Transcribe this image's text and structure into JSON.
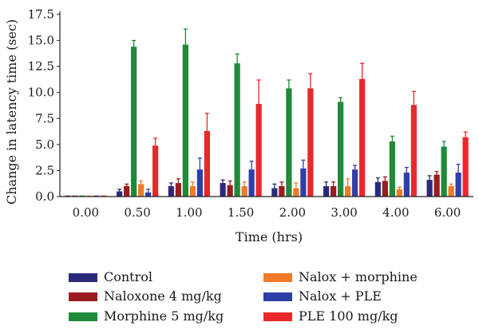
{
  "chart_data": {
    "type": "bar",
    "title": "",
    "xlabel": "Time (hrs)",
    "ylabel": "Change in latency time (sec)",
    "ylim": [
      0,
      17.5
    ],
    "yticks": [
      "0.0",
      "2.5",
      "5.0",
      "7.5",
      "10.0",
      "12.5",
      "15.0",
      "17.5"
    ],
    "categories": [
      "0.00",
      "0.50",
      "1.00",
      "1.50",
      "2.00",
      "3.00",
      "4.00",
      "6.00"
    ],
    "error_bars": true,
    "grid": false,
    "legend_position": "bottom",
    "series": [
      {
        "name": "Control",
        "color": "#2b2a7a",
        "values": [
          0.1,
          0.5,
          1.0,
          1.3,
          0.8,
          1.0,
          1.4,
          1.6
        ],
        "errors": [
          0.05,
          0.2,
          0.3,
          0.3,
          0.4,
          0.4,
          0.4,
          0.4
        ]
      },
      {
        "name": "Naloxone 4 mg/kg",
        "color": "#9a1c1f",
        "values": [
          0.1,
          1.0,
          1.3,
          1.1,
          1.0,
          1.0,
          1.5,
          2.1
        ],
        "errors": [
          0.05,
          0.2,
          0.4,
          0.4,
          0.4,
          0.4,
          0.4,
          0.3
        ]
      },
      {
        "name": "Morphine 5 mg/kg",
        "color": "#1f8a3a",
        "values": [
          0.1,
          14.4,
          14.6,
          12.8,
          10.4,
          9.1,
          5.3,
          4.8
        ],
        "errors": [
          0.05,
          0.6,
          1.5,
          0.9,
          0.8,
          0.4,
          0.5,
          0.5
        ]
      },
      {
        "name": "Nalox + morphine",
        "color": "#f07a28",
        "values": [
          0.1,
          1.2,
          1.0,
          1.0,
          0.8,
          1.0,
          0.7,
          1.0
        ],
        "errors": [
          0.05,
          0.3,
          0.4,
          0.4,
          0.5,
          0.7,
          0.2,
          0.2
        ]
      },
      {
        "name": "Nalox + PLE",
        "color": "#2f3fa8",
        "values": [
          0.1,
          0.4,
          2.6,
          2.6,
          2.7,
          2.6,
          2.3,
          2.3
        ],
        "errors": [
          0.05,
          0.3,
          1.1,
          0.8,
          0.8,
          0.4,
          0.5,
          0.8
        ]
      },
      {
        "name": "PLE 100 mg/kg",
        "color": "#e8282b",
        "values": [
          0.1,
          4.9,
          6.3,
          8.9,
          10.4,
          11.3,
          8.8,
          5.7
        ],
        "errors": [
          0.05,
          0.7,
          1.7,
          2.3,
          1.4,
          1.5,
          1.3,
          0.5
        ]
      }
    ]
  }
}
